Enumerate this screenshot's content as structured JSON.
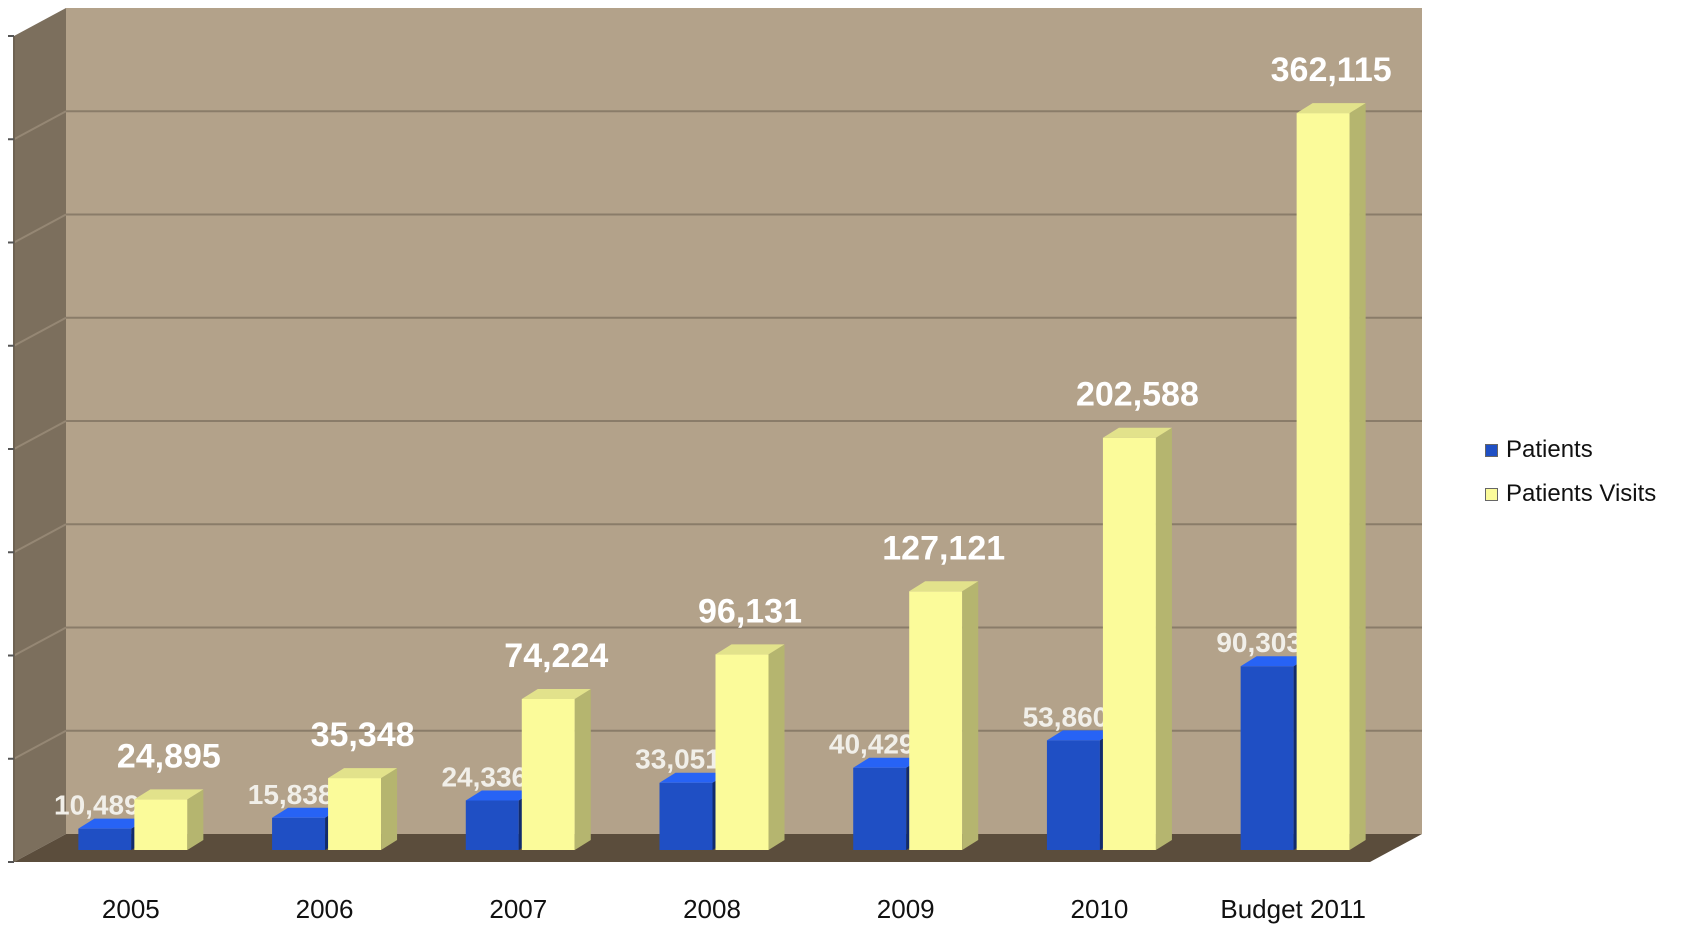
{
  "chart_data": {
    "type": "bar",
    "title": "",
    "xlabel": "",
    "ylabel": "",
    "categories": [
      "2005",
      "2006",
      "2007",
      "2008",
      "2009",
      "2010",
      "Budget 2011"
    ],
    "series": [
      {
        "name": "Patients",
        "values": [
          10489,
          15838,
          24336,
          33051,
          40429,
          53860,
          90303
        ],
        "color": "#1f4fc4"
      },
      {
        "name": "Patients Visits",
        "values": [
          24895,
          35348,
          74224,
          96131,
          127121,
          202588,
          362115
        ],
        "color": "#fbfb9a"
      }
    ],
    "data_labels": {
      "Patients": [
        "10,489",
        "15,838",
        "24,336",
        "33,051",
        "40,429",
        "53,860",
        "90,303"
      ],
      "Patients Visits": [
        "24,895",
        "35,348",
        "74,224",
        "96,131",
        "127,121",
        "202,588",
        "362,115"
      ]
    },
    "ylim": [
      0,
      400000
    ],
    "y_major_step": 50000,
    "y_tick_labels_shown": false,
    "grid": true,
    "three_d": true,
    "legend_position": "right",
    "colors": {
      "wall": "#b3a28a",
      "side_wall": "#7c6f5d",
      "floor": "#5b4d3c",
      "gridline": "#8a7c69"
    }
  }
}
